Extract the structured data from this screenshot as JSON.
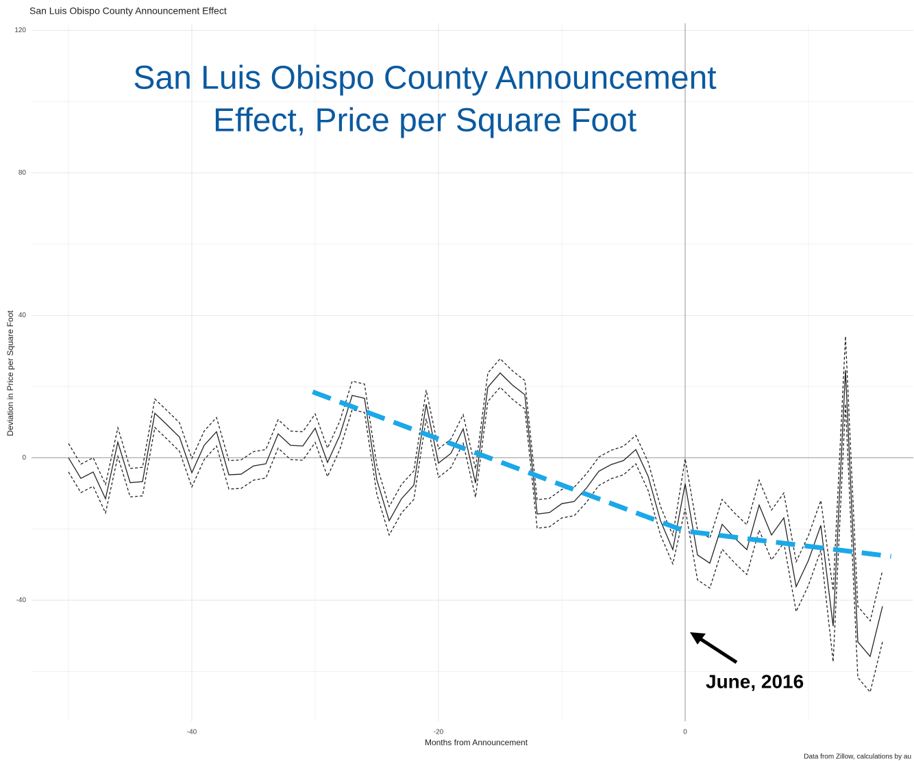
{
  "chart_data": {
    "type": "line",
    "title": "San Luis Obispo County Announcement Effect",
    "overlay_title": [
      "San Luis Obispo County Announcement",
      "Effect, Price per Square Foot"
    ],
    "x_label": "Months from Announcement",
    "y_label": "Deviation in Price per Square Foot",
    "caption": "Data from Zillow, calculations by au",
    "annotation": "June, 2016",
    "xlim": [
      -53,
      18.5
    ],
    "ylim": [
      -74,
      122
    ],
    "xticks": [
      -40,
      -20,
      0
    ],
    "yticks": [
      -40,
      0,
      40,
      80,
      120
    ],
    "x_minor_ticks": [
      -50,
      -30,
      -10,
      10
    ],
    "y_minor_ticks": [
      -60,
      -20,
      20,
      60,
      100
    ],
    "grid": true,
    "hline": 0,
    "vline": 0,
    "x": [
      -50,
      -49,
      -48,
      -47,
      -46,
      -45,
      -44,
      -43,
      -42,
      -41,
      -40,
      -39,
      -38,
      -37,
      -36,
      -35,
      -34,
      -33,
      -32,
      -31,
      -30,
      -29,
      -28,
      -27,
      -26,
      -25,
      -24,
      -23,
      -22,
      -21,
      -20,
      -19,
      -18,
      -17,
      -16,
      -15,
      -14,
      -13,
      -12,
      -11,
      -10,
      -9,
      -8,
      -7,
      -6,
      -5,
      -4,
      -3,
      -2,
      -1,
      0,
      1,
      2,
      3,
      4,
      5,
      6,
      7,
      8,
      9,
      10,
      11,
      12,
      13,
      14,
      15,
      16
    ],
    "series": [
      {
        "color": "#222222",
        "dash": false,
        "values": [
          0,
          -5.8,
          -4,
          -11.5,
          4.4,
          -7,
          -6.7,
          12.5,
          9.2,
          5.8,
          -4.2,
          3.5,
          7.3,
          -4.8,
          -4.6,
          -2.3,
          -1.7,
          6.7,
          3.5,
          3.3,
          8.3,
          -1.3,
          6.3,
          17.5,
          16.7,
          -6.2,
          -17.7,
          -11.5,
          -7.7,
          15,
          -1.5,
          1.2,
          8.1,
          -7.1,
          19.8,
          23.8,
          20.4,
          17.7,
          -15.8,
          -15.4,
          -12.9,
          -12.3,
          -8.5,
          -3.8,
          -1.9,
          -0.8,
          2.3,
          -5.2,
          -17.7,
          -25.8,
          -7.3,
          -27.3,
          -29.6,
          -18.7,
          -22.5,
          -25.8,
          -13.3,
          -21.7,
          -16.9,
          -36.2,
          -28.8,
          -19,
          -47.3,
          24.6,
          -51.7,
          -55.8,
          -41.7
        ]
      },
      {
        "color": "#222222",
        "dash": true,
        "values": [
          4,
          -1.8,
          0,
          -7.5,
          8.4,
          -3,
          -2.7,
          16.5,
          13.2,
          9.8,
          -0.2,
          7.5,
          11.3,
          -0.8,
          -0.6,
          1.7,
          2.3,
          10.7,
          7.5,
          7.3,
          12.3,
          2.7,
          10.3,
          21.5,
          20.7,
          -2.2,
          -13.7,
          -7.5,
          -3.7,
          19,
          2.5,
          5.2,
          12.1,
          -3.1,
          23.8,
          27.8,
          24.4,
          21.7,
          -11.8,
          -11.4,
          -8.9,
          -8.3,
          -4.5,
          0.2,
          2.1,
          3.2,
          6.3,
          -1.2,
          -13.7,
          -21.8,
          -0.3,
          -20.3,
          -22.6,
          -11.7,
          -15.5,
          -18.8,
          -6.3,
          -14.7,
          -9.9,
          -29.2,
          -21.8,
          -12,
          -37.3,
          34.1,
          -41.7,
          -45.8,
          -31.7
        ]
      },
      {
        "color": "#222222",
        "dash": true,
        "values": [
          -4,
          -9.8,
          -8,
          -15.5,
          0.4,
          -11,
          -10.7,
          8.5,
          5.2,
          1.8,
          -8.2,
          -0.5,
          3.3,
          -8.8,
          -8.6,
          -6.3,
          -5.7,
          2.7,
          -0.5,
          -0.7,
          4.3,
          -5.3,
          2.3,
          13.5,
          12.7,
          -10.2,
          -21.7,
          -15.5,
          -11.7,
          11,
          -5.5,
          -2.8,
          4.1,
          -11.1,
          15.8,
          19.8,
          16.4,
          13.7,
          -19.8,
          -19.4,
          -16.9,
          -16.3,
          -12.5,
          -7.8,
          -5.9,
          -4.8,
          -1.7,
          -9.2,
          -21.7,
          -29.8,
          -14.3,
          -34.3,
          -36.6,
          -25.7,
          -29.5,
          -32.8,
          -20.3,
          -28.7,
          -23.9,
          -43.2,
          -35.8,
          -26,
          -57.3,
          15.1,
          -61.7,
          -65.8,
          -51.7
        ]
      }
    ],
    "trend": {
      "color": "#1aa8e8",
      "x": [
        -30.2,
        0,
        16.7
      ],
      "values": [
        18.5,
        -20.6,
        -27.7
      ]
    }
  }
}
